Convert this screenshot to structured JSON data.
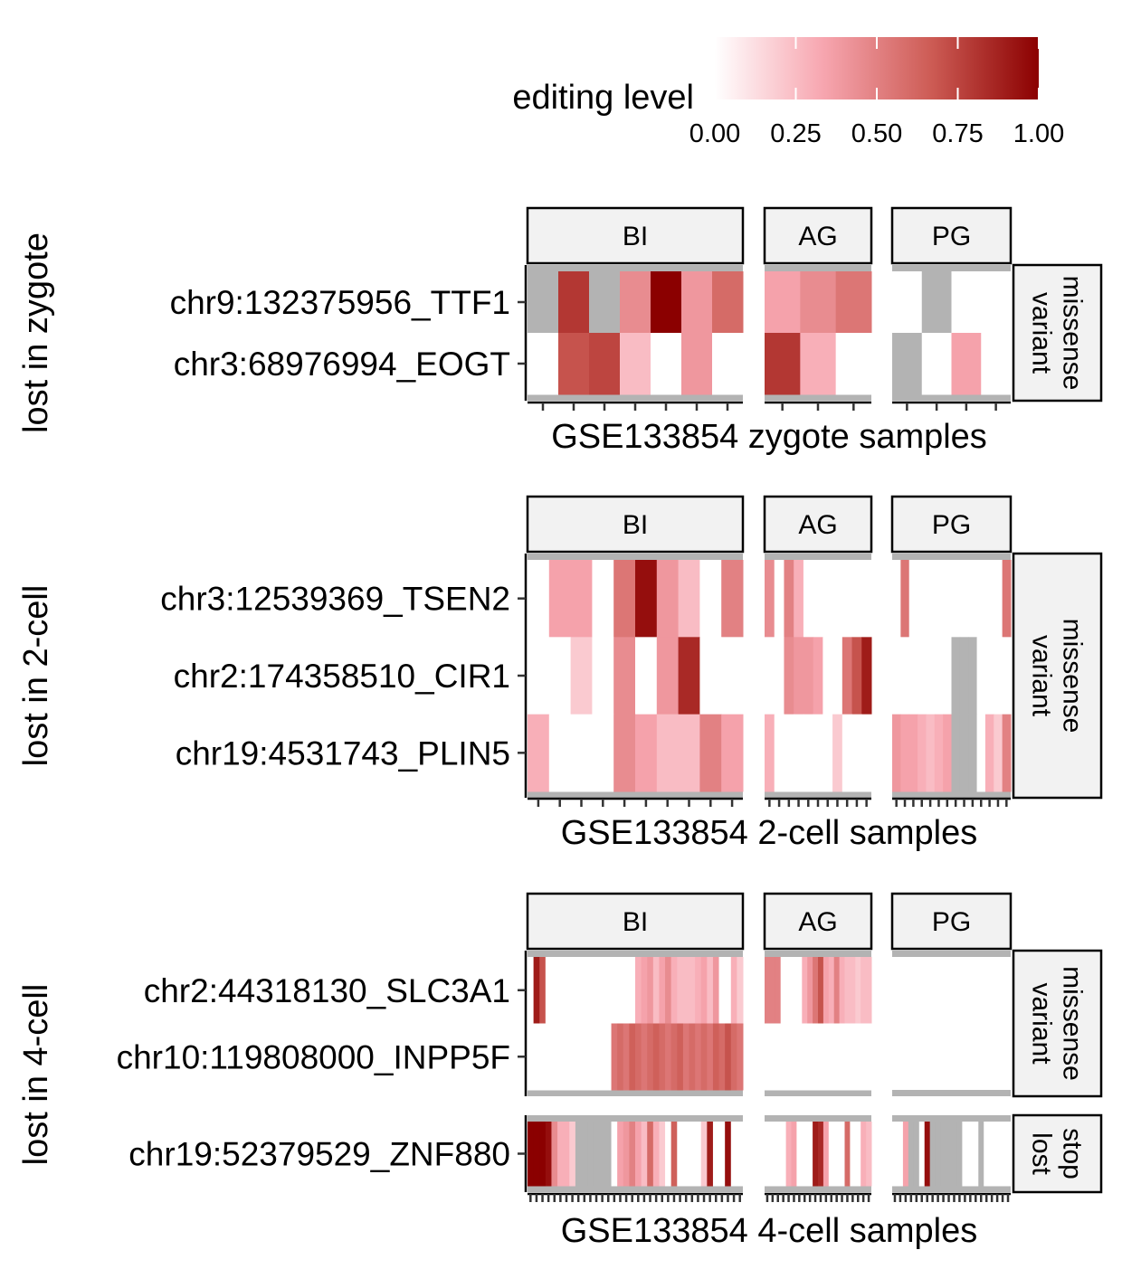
{
  "legend": {
    "title": "editing level",
    "ticks": [
      "0.00",
      "0.25",
      "0.50",
      "0.75",
      "1.00"
    ],
    "domain": [
      0,
      1
    ],
    "colors": [
      "#ffffff",
      "#f7a6b0",
      "#cd5c55",
      "#8b0000"
    ]
  },
  "colors": {
    "na": "#b3b3b3",
    "strip_fill": "#f2f2f2",
    "strip_border": "#000000"
  },
  "chart_data": {
    "type": "heatmap",
    "value_scale": "editing level (0-1), null = not available (grey)",
    "columns": [
      "BI",
      "AG",
      "PG"
    ],
    "panels": [
      {
        "ylabel": "lost in zygote",
        "xlabel": "GSE133854 zygote samples",
        "groups": [
          {
            "label": [
              "missense",
              "variant"
            ],
            "rows": [
              "chr9:132375956_TTF1",
              "chr3:68976994_EOGT"
            ],
            "cells": {
              "BI": [
                [
                  null,
                  0.8,
                  null,
                  0.45,
                  1.0,
                  0.4,
                  0.6
                ],
                [
                  0,
                  0.7,
                  0.75,
                  0.25,
                  0,
                  0.4,
                  0
                ]
              ],
              "AG": [
                [
                  0.35,
                  0.45,
                  0.55
                ],
                [
                  0.8,
                  0.3,
                  0
                ]
              ],
              "PG": [
                [
                  0,
                  null,
                  0,
                  0
                ],
                [
                  null,
                  0,
                  0.35,
                  0
                ]
              ]
            }
          }
        ]
      },
      {
        "ylabel": "lost in 2-cell",
        "xlabel": "GSE133854 2-cell samples",
        "groups": [
          {
            "label": [
              "missense",
              "variant"
            ],
            "rows": [
              "chr3:12539369_TSEN2",
              "chr2:174358510_CIR1",
              "chr19:4531743_PLIN5"
            ],
            "cells": {
              "BI": [
                [
                  0,
                  0.35,
                  0.35,
                  0,
                  0.55,
                  0.95,
                  0.4,
                  0.25,
                  0,
                  0.5
                ],
                [
                  0,
                  0,
                  0.2,
                  0,
                  0.45,
                  0,
                  0.4,
                  0.85,
                  0,
                  0
                ],
                [
                  0.3,
                  0,
                  0,
                  0,
                  0.45,
                  0.35,
                  0.25,
                  0.25,
                  0.5,
                  0.35
                ]
              ],
              "AG": [
                [
                  0.45,
                  0,
                  0.5,
                  0.3,
                  0,
                  0,
                  0,
                  0,
                  0,
                  0,
                  0
                ],
                [
                  0,
                  0,
                  0.45,
                  0.4,
                  0.4,
                  0.35,
                  0,
                  0,
                  0.55,
                  0.7,
                  0.9
                ],
                [
                  0.3,
                  0,
                  0,
                  0,
                  0,
                  0,
                  0,
                  0.2,
                  0,
                  0,
                  0
                ]
              ],
              "PG": [
                [
                  0,
                  0.55,
                  0,
                  0,
                  0,
                  0,
                  0,
                  0,
                  0,
                  0,
                  0,
                  0,
                  0,
                  0.55
                ],
                [
                  0,
                  0,
                  0,
                  0,
                  0,
                  0,
                  0,
                  null,
                  null,
                  null,
                  0,
                  0,
                  0,
                  0
                ],
                [
                  0.4,
                  0.35,
                  0.35,
                  0.3,
                  0.25,
                  0.3,
                  0.35,
                  null,
                  null,
                  null,
                  0,
                  0.3,
                  0.2,
                  0.5
                ]
              ]
            }
          }
        ]
      },
      {
        "ylabel": "lost in 4-cell",
        "xlabel": "GSE133854 4-cell samples",
        "groups": [
          {
            "label": [
              "missense",
              "variant"
            ],
            "rows": [
              "chr2:44318130_SLC3A1",
              "chr10:119808000_INPP5F"
            ],
            "cells": {
              "BI": [
                [
                  0,
                  0.9,
                  0.7,
                  0,
                  0,
                  0,
                  0,
                  0,
                  0,
                  0,
                  0,
                  0,
                  0,
                  0,
                  0,
                  0,
                  0,
                  0,
                  0.3,
                  0.35,
                  0.4,
                  0.25,
                  0.35,
                  0.45,
                  0.3,
                  0.25,
                  0.25,
                  0.25,
                  0.3,
                  0.35,
                  0.25,
                  0.4,
                  0,
                  0,
                  0.3,
                  0.2
                ],
                [
                  0,
                  0,
                  0,
                  0,
                  0,
                  0,
                  0,
                  0,
                  0,
                  0,
                  0,
                  0,
                  0,
                  0,
                  0.55,
                  0.6,
                  0.55,
                  0.65,
                  0.6,
                  0.55,
                  0.6,
                  0.65,
                  0.6,
                  0.55,
                  0.6,
                  0.65,
                  0.55,
                  0.6,
                  0.55,
                  0.6,
                  0.55,
                  0.65,
                  0.6,
                  0.7,
                  0.6,
                  0.55
                ]
              ],
              "AG": [
                [
                  0.5,
                  0.5,
                  0.5,
                  0,
                  0,
                  0,
                  0,
                  0.3,
                  0.4,
                  0.55,
                  0.7,
                  0.35,
                  0.3,
                  0.5,
                  0.3,
                  0.25,
                  0.25,
                  0.2,
                  0.25,
                  0.25
                ],
                [
                  0,
                  0,
                  0,
                  0,
                  0,
                  0,
                  0,
                  0,
                  0,
                  0,
                  0,
                  0,
                  0,
                  0,
                  0,
                  0,
                  0,
                  0,
                  0,
                  0
                ]
              ]
            }
          },
          {
            "label": [
              "stop",
              "lost"
            ],
            "rows": [
              "chr19:52379529_ZNF880"
            ],
            "cells": {
              "BI": [
                [
                  1.0,
                  1.0,
                  1.0,
                  0.95,
                  0.45,
                  0.3,
                  0.3,
                  0.2,
                  null,
                  null,
                  null,
                  null,
                  null,
                  null,
                  0,
                  0.35,
                  0.4,
                  0.5,
                  0.35,
                  0.25,
                  0.6,
                  0.3,
                  0.2,
                  0,
                  0.65,
                  0,
                  0,
                  0,
                  0,
                  0.2,
                  0.9,
                  0,
                  0,
                  0.95,
                  0,
                  0
                ]
              ],
              "AG": [
                [
                  0,
                  0,
                  0,
                  0,
                  0.3,
                  0.35,
                  0,
                  0,
                  0,
                  0.9,
                  0.85,
                  0.35,
                  0,
                  0,
                  0,
                  0.6,
                  0,
                  0,
                  0.3,
                  0.25
                ]
              ],
              "PG": [
                [
                  0,
                  0,
                  0.35,
                  null,
                  null,
                  0,
                  0.95,
                  null,
                  null,
                  null,
                  null,
                  null,
                  null,
                  0,
                  0,
                  0,
                  null,
                  0,
                  0,
                  0,
                  0,
                  0
                ]
              ]
            }
          }
        ]
      }
    ]
  }
}
